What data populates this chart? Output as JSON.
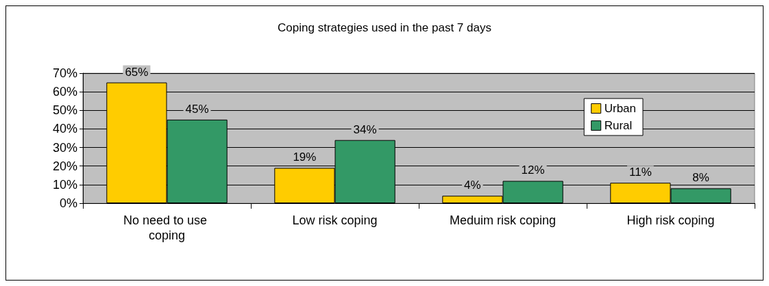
{
  "chart_data": {
    "type": "bar",
    "title": "Coping strategies used in the past 7 days",
    "categories": [
      "No need to use coping",
      "Low risk coping",
      "Meduim risk coping",
      "High risk coping"
    ],
    "series": [
      {
        "name": "Urban",
        "color": "#ffcc00",
        "values": [
          65,
          19,
          4,
          11
        ],
        "value_labels": [
          "65%",
          "19%",
          "4%",
          "11%"
        ]
      },
      {
        "name": "Rural",
        "color": "#339966",
        "values": [
          45,
          34,
          12,
          8
        ],
        "value_labels": [
          "45%",
          "34%",
          "12%",
          "8%"
        ]
      }
    ],
    "ylim": [
      0,
      70
    ],
    "yticks": [
      {
        "value": 0,
        "label": "0%"
      },
      {
        "value": 10,
        "label": "10%"
      },
      {
        "value": 20,
        "label": "20%"
      },
      {
        "value": 30,
        "label": "30%"
      },
      {
        "value": 40,
        "label": "40%"
      },
      {
        "value": 50,
        "label": "50%"
      },
      {
        "value": 60,
        "label": "60%"
      },
      {
        "value": 70,
        "label": "70%"
      }
    ],
    "grid": "y",
    "legend": "top right"
  }
}
